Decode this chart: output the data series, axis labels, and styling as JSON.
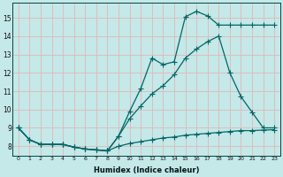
{
  "xlabel": "Humidex (Indice chaleur)",
  "bg_color": "#c5e8e8",
  "line_color": "#006666",
  "grid_color": "#e0b8b8",
  "xlim": [
    -0.5,
    23.5
  ],
  "ylim": [
    7.5,
    15.8
  ],
  "xticks": [
    0,
    1,
    2,
    3,
    4,
    5,
    6,
    7,
    8,
    9,
    10,
    11,
    12,
    13,
    14,
    15,
    16,
    17,
    18,
    19,
    20,
    21,
    22,
    23
  ],
  "yticks": [
    8,
    9,
    10,
    11,
    12,
    13,
    14,
    15
  ],
  "line1_x": [
    0,
    1,
    2,
    3,
    4,
    5,
    6,
    7,
    8,
    9,
    10,
    11,
    12,
    13,
    14,
    15,
    16,
    17,
    18,
    19,
    20,
    21,
    22,
    23
  ],
  "line1_y": [
    9.0,
    8.35,
    8.1,
    8.1,
    8.1,
    7.95,
    7.85,
    7.8,
    7.75,
    8.55,
    9.9,
    11.15,
    12.8,
    12.45,
    12.6,
    15.05,
    15.35,
    15.1,
    14.6,
    14.6,
    14.6,
    14.6,
    14.6,
    14.6
  ],
  "line2_x": [
    0,
    1,
    2,
    3,
    4,
    5,
    6,
    7,
    8,
    9,
    10,
    11,
    12,
    13,
    14,
    15,
    16,
    17,
    18,
    19,
    20,
    21,
    22,
    23
  ],
  "line2_y": [
    9.0,
    8.35,
    8.1,
    8.1,
    8.1,
    7.95,
    7.85,
    7.8,
    7.75,
    8.55,
    9.5,
    10.2,
    10.85,
    11.3,
    11.9,
    12.8,
    13.3,
    13.7,
    14.0,
    12.0,
    10.7,
    9.85,
    9.0,
    9.0
  ],
  "line3_x": [
    0,
    1,
    2,
    3,
    4,
    5,
    6,
    7,
    8,
    9,
    10,
    11,
    12,
    13,
    14,
    15,
    16,
    17,
    18,
    19,
    20,
    21,
    22,
    23
  ],
  "line3_y": [
    9.0,
    8.35,
    8.1,
    8.1,
    8.1,
    7.95,
    7.85,
    7.8,
    7.75,
    8.0,
    8.15,
    8.25,
    8.35,
    8.45,
    8.5,
    8.6,
    8.65,
    8.7,
    8.75,
    8.8,
    8.85,
    8.85,
    8.88,
    8.9
  ]
}
